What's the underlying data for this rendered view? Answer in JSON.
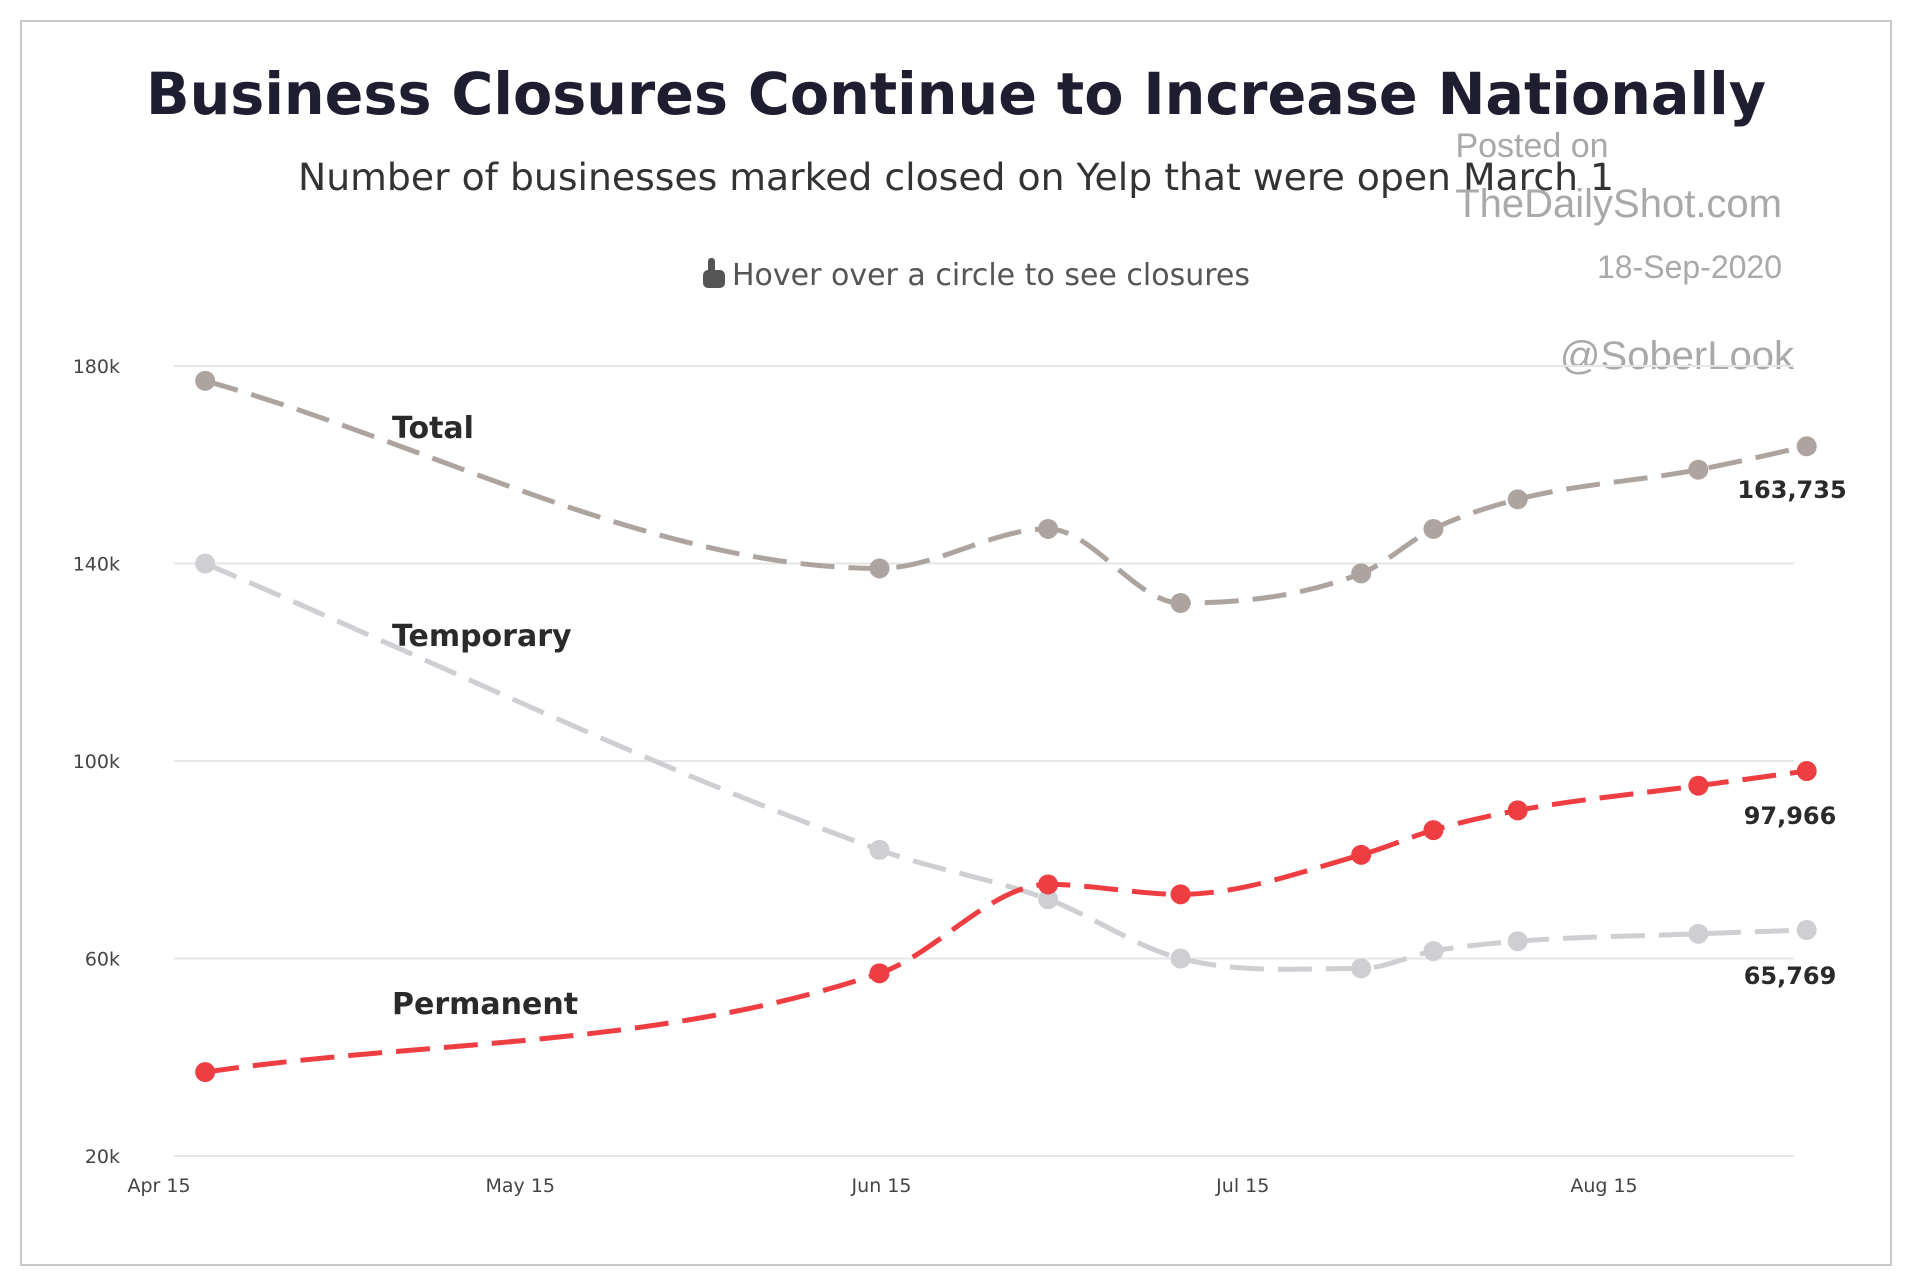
{
  "chart_data": {
    "type": "line",
    "title": "Business Closures Continue to Increase Nationally",
    "subtitle": "Number of businesses marked closed on Yelp that were open March 1",
    "hint": "Hover over a circle to see closures",
    "x_ticks": [
      "Apr 15",
      "May 15",
      "Jun 15",
      "Jul 15",
      "Aug 15"
    ],
    "y_ticks": [
      "20k",
      "60k",
      "100k",
      "140k",
      "180k"
    ],
    "ylim": [
      20000,
      180000
    ],
    "x_days": [
      4,
      60,
      74,
      85,
      100,
      106,
      113,
      128,
      137
    ],
    "series": [
      {
        "name": "Total",
        "color": "#ada49f",
        "values": [
          177000,
          139000,
          147000,
          132000,
          138000,
          147000,
          153000,
          159000,
          163735
        ],
        "end_label": "163,735"
      },
      {
        "name": "Temporary",
        "color": "#cfced3",
        "values": [
          140000,
          82000,
          72000,
          60000,
          58000,
          61500,
          63500,
          65000,
          65769
        ],
        "end_label": "65,769"
      },
      {
        "name": "Permanent",
        "color": "#ef3e42",
        "values": [
          37000,
          57000,
          75000,
          73000,
          81000,
          86000,
          90000,
          95000,
          97966
        ],
        "end_label": "97,966"
      }
    ]
  },
  "watermark": {
    "line1": "Posted on",
    "line2": "TheDailyShot.com",
    "line3": "18-Sep-2020",
    "handle": "@SoberLook"
  },
  "colors": {
    "title": "#1f1d30",
    "grid": "#e6e6e6"
  }
}
